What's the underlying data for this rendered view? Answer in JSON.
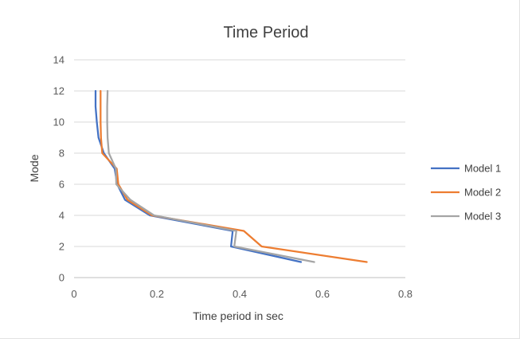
{
  "chart_data": {
    "type": "line",
    "title": "Time Period",
    "xlabel": "Time period in sec",
    "ylabel": "Mode",
    "xlim": [
      0,
      0.8
    ],
    "ylim": [
      0,
      14
    ],
    "x_ticks": [
      "0",
      "0.2",
      "0.4",
      "0.6",
      "0.8"
    ],
    "x_tick_values": [
      0,
      0.2,
      0.4,
      0.6,
      0.8
    ],
    "y_ticks": [
      "0",
      "2",
      "4",
      "6",
      "8",
      "10",
      "12",
      "14"
    ],
    "y_tick_values": [
      0,
      2,
      4,
      6,
      8,
      10,
      12,
      14
    ],
    "grid": "horizontal",
    "legend_position": "right",
    "series": [
      {
        "name": "Model 1",
        "color": "#4472C4",
        "points": [
          [
            0.548,
            1
          ],
          [
            0.379,
            2
          ],
          [
            0.383,
            3
          ],
          [
            0.183,
            4
          ],
          [
            0.123,
            5
          ],
          [
            0.104,
            6
          ],
          [
            0.098,
            7
          ],
          [
            0.072,
            8
          ],
          [
            0.059,
            9
          ],
          [
            0.055,
            10
          ],
          [
            0.052,
            11
          ],
          [
            0.052,
            12
          ]
        ]
      },
      {
        "name": "Model 2",
        "color": "#ED7D31",
        "points": [
          [
            0.707,
            1
          ],
          [
            0.453,
            2
          ],
          [
            0.41,
            3
          ],
          [
            0.188,
            4
          ],
          [
            0.129,
            5
          ],
          [
            0.107,
            6
          ],
          [
            0.103,
            7
          ],
          [
            0.068,
            8
          ],
          [
            0.065,
            9
          ],
          [
            0.064,
            10
          ],
          [
            0.064,
            11
          ],
          [
            0.064,
            12
          ]
        ]
      },
      {
        "name": "Model 3",
        "color": "#A5A5A5",
        "points": [
          [
            0.58,
            1
          ],
          [
            0.387,
            2
          ],
          [
            0.392,
            3
          ],
          [
            0.193,
            4
          ],
          [
            0.136,
            5
          ],
          [
            0.102,
            6
          ],
          [
            0.101,
            7
          ],
          [
            0.084,
            8
          ],
          [
            0.081,
            9
          ],
          [
            0.08,
            10
          ],
          [
            0.08,
            11
          ],
          [
            0.081,
            12
          ]
        ]
      }
    ]
  }
}
